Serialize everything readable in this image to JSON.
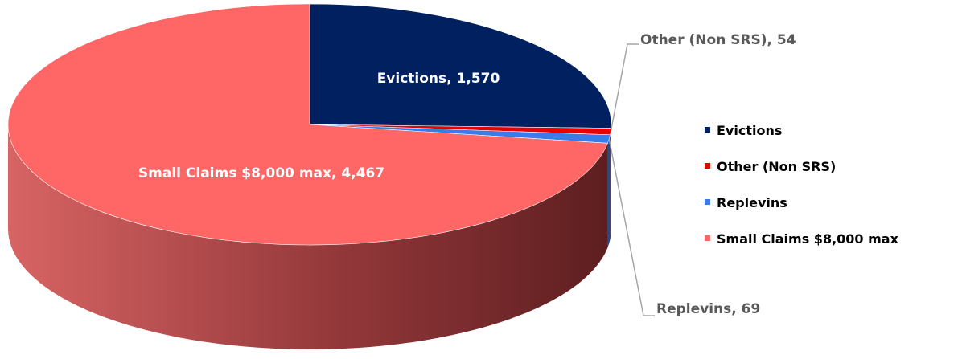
{
  "chart_data": {
    "type": "pie",
    "categories": [
      "Evictions",
      "Other (Non SRS)",
      "Replevins",
      "Small Claims $8,000 max"
    ],
    "values": [
      1570,
      54,
      69,
      4467
    ],
    "value_labels": [
      "Evictions, 1,570",
      "Other (Non SRS), 54",
      "Replevins, 69",
      "Small Claims $8,000 max, 4,467"
    ],
    "colors": [
      "#002060",
      "#e60000",
      "#3a7bea",
      "#ff6666"
    ],
    "legend": "right"
  }
}
